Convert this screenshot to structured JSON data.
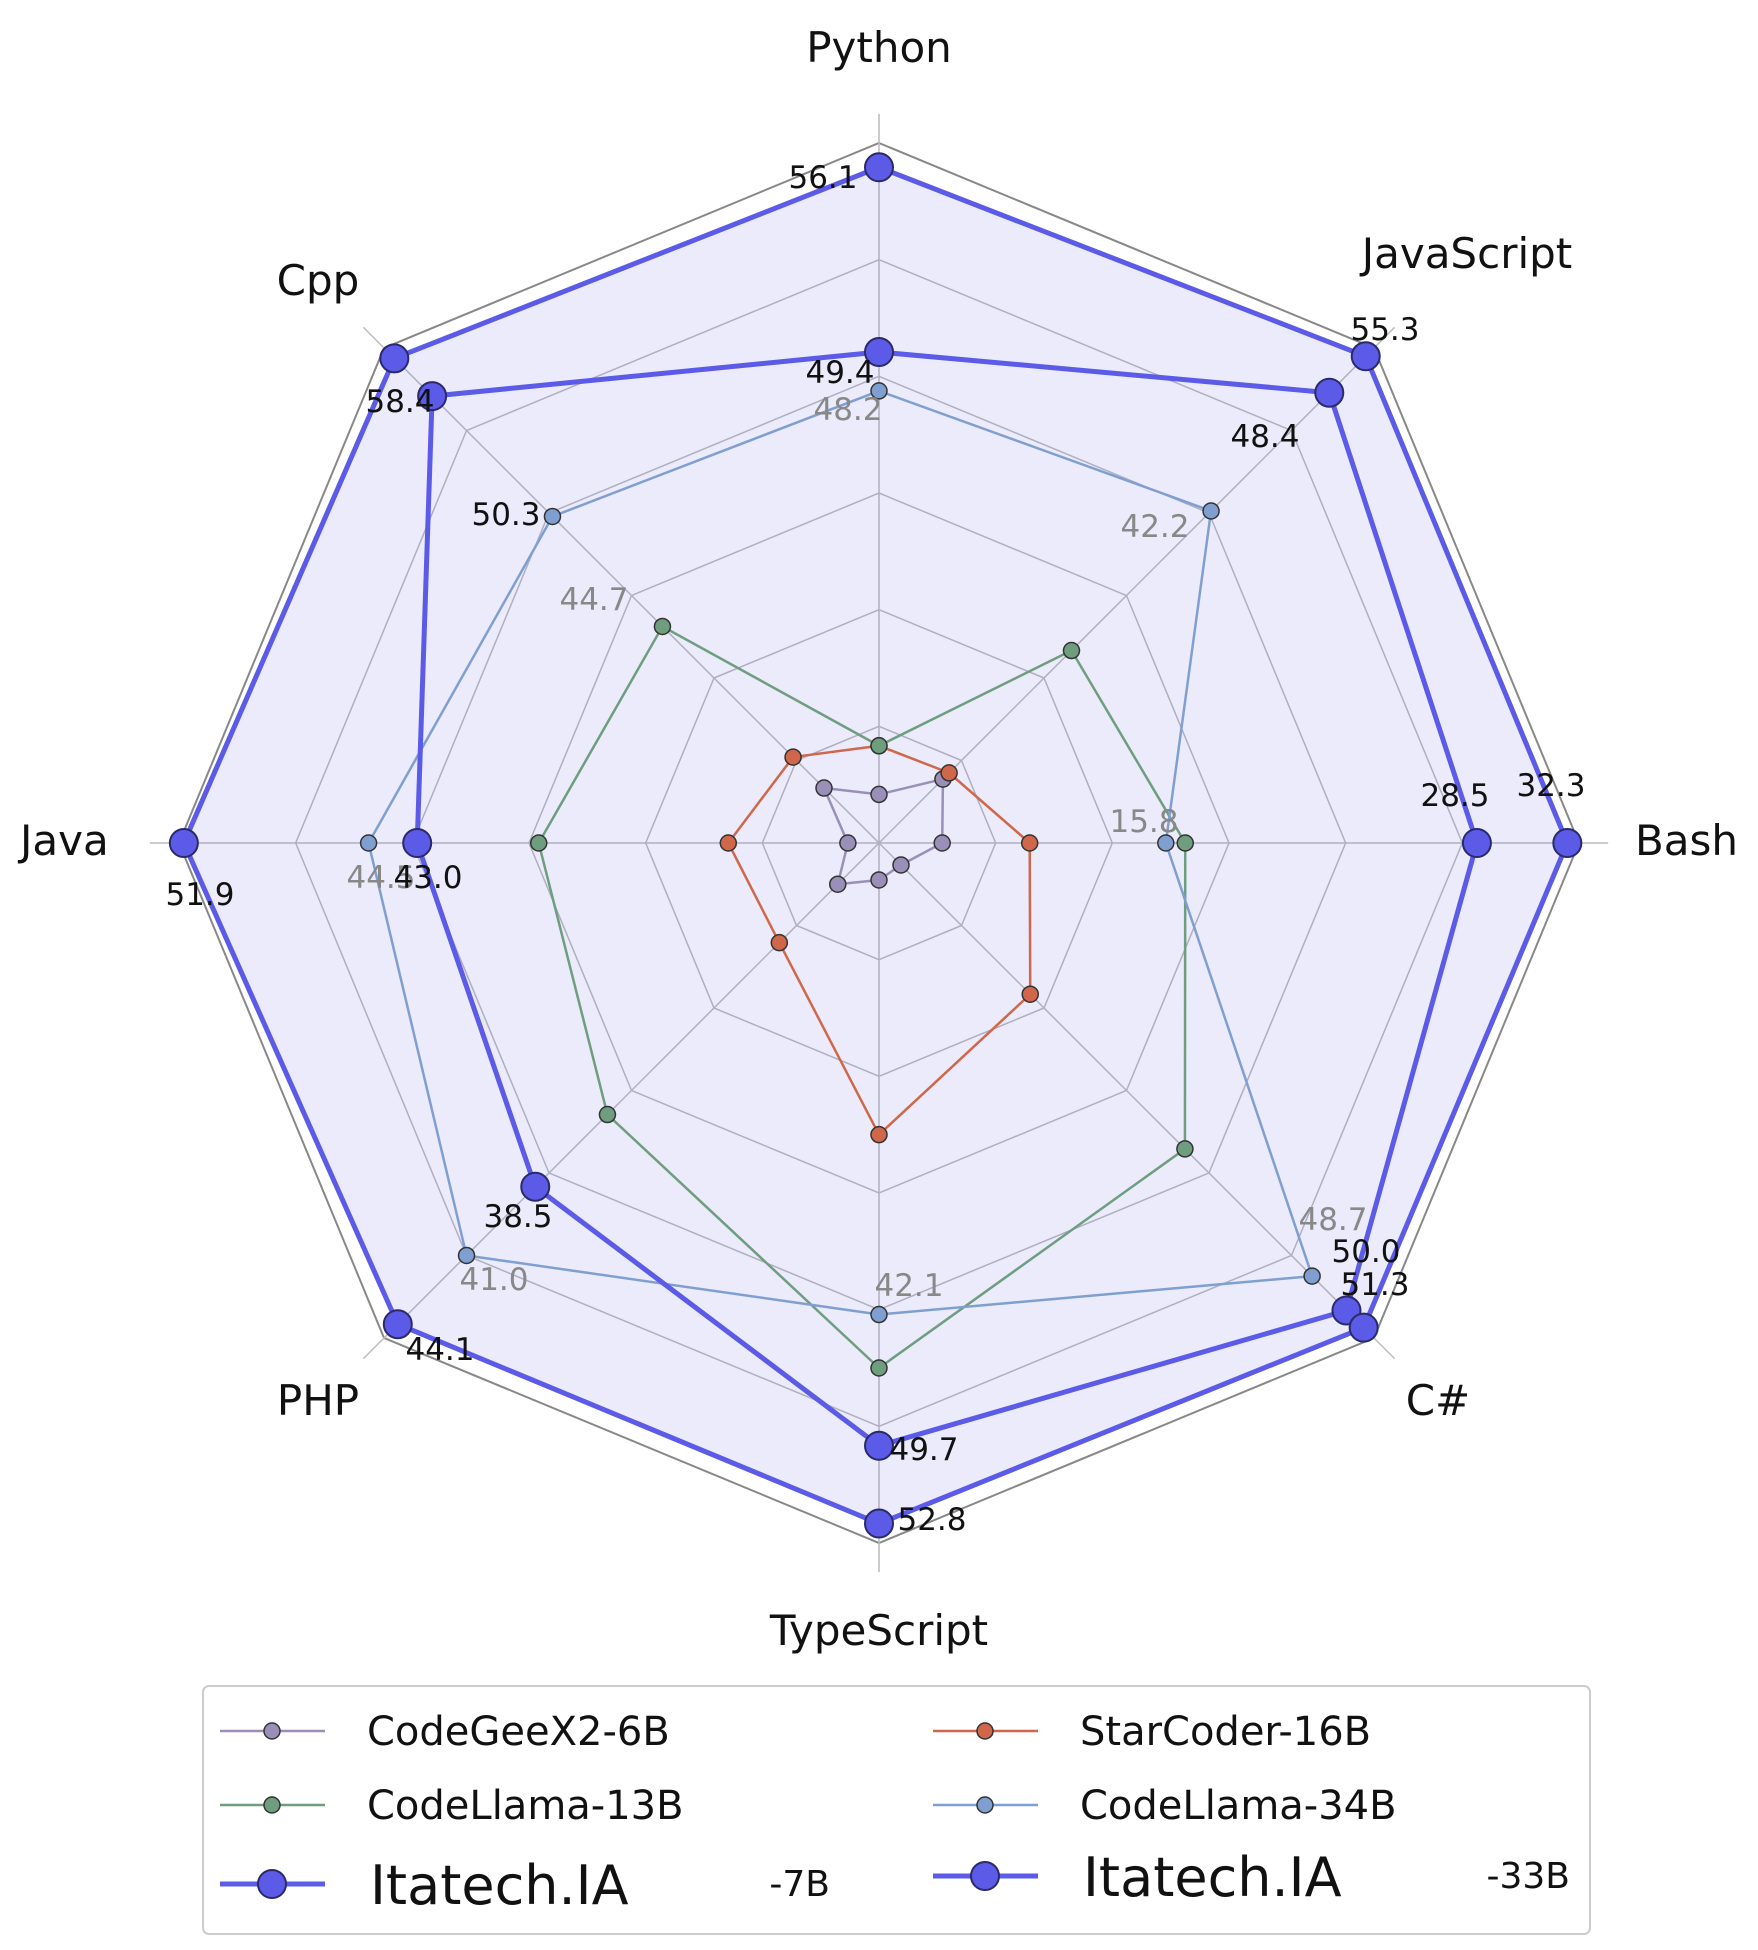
{
  "chart_data": {
    "type": "radar",
    "axes": [
      "Python",
      "JavaScript",
      "Bash",
      "C#",
      "TypeScript",
      "PHP",
      "Java",
      "Cpp"
    ],
    "rmax": 60,
    "grid_levels": [
      10,
      20,
      30,
      40,
      50,
      60
    ],
    "series": [
      {
        "name": "CodeGeeX2-6B",
        "color": "#9a8fb8",
        "style": "small",
        "values": [
          5.0,
          9.3,
          6.5,
          3.2,
          3.8,
          6.0,
          3.2,
          8.0
        ],
        "labels": null
      },
      {
        "name": "StarCoder-16B",
        "color": "#d0674a",
        "style": "small",
        "values": [
          10.0,
          10.2,
          15.5,
          22.0,
          30.0,
          14.5,
          15.5,
          12.5
        ],
        "labels": null
      },
      {
        "name": "CodeLlama-13B",
        "color": "#6e9e7e",
        "style": "small",
        "values": [
          10.0,
          28.0,
          31.5,
          44.5,
          54.0,
          39.5,
          35.0,
          31.5
        ],
        "labels": null
      },
      {
        "name": "CodeLlama-34B",
        "color": "#7f9fd1",
        "style": "small",
        "values": [
          46.5,
          48.3,
          29.5,
          63.0,
          48.5,
          60.0,
          52.5,
          47.5
        ],
        "labels": [
          "48.2",
          "42.2",
          "15.8",
          "48.7",
          "42.1",
          "41.0",
          "44.5",
          "44.7"
        ]
      },
      {
        "name": "Itatech.IA",
        "suffix": "-7B",
        "color": "#5b5be8",
        "style": "big",
        "values": [
          50.5,
          65.5,
          61.5,
          68.0,
          62.0,
          50.0,
          47.5,
          65.0
        ],
        "labels": [
          "49.4",
          "48.4",
          "28.5",
          "50.0",
          "49.7",
          "38.5",
          "43.0",
          "50.3"
        ]
      },
      {
        "name": "Itatech.IA",
        "suffix": "-33B",
        "color": "#5b5be8",
        "style": "big",
        "values": [
          69.5,
          70.8,
          70.8,
          70.5,
          70.0,
          70.0,
          71.5,
          70.5
        ],
        "labels": [
          "56.1",
          "55.3",
          "32.3",
          "51.3",
          "52.8",
          "44.1",
          "51.9",
          "58.4"
        ]
      }
    ]
  }
}
